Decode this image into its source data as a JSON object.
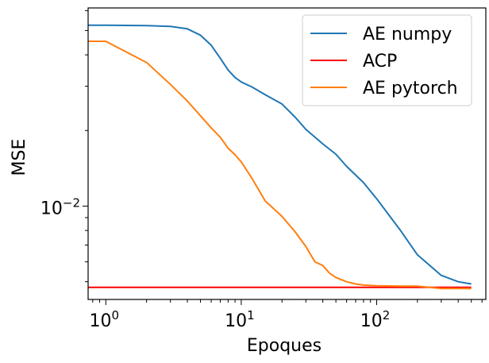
{
  "chart_data": {
    "type": "line",
    "title": "",
    "xlabel": "Epoques",
    "ylabel": "MSE",
    "x_scale": "log",
    "y_scale": "log",
    "xlim": [
      0.74,
      640
    ],
    "ylim": [
      0.00425,
      0.0615
    ],
    "x_ticks": [
      {
        "value": 1,
        "label": "10",
        "exp": "0"
      },
      {
        "value": 10,
        "label": "10",
        "exp": "1"
      },
      {
        "value": 100,
        "label": "10",
        "exp": "2"
      }
    ],
    "y_ticks": [
      {
        "value": 0.01,
        "label": "10",
        "exp": "−2"
      }
    ],
    "legend": {
      "position": "top-right"
    },
    "grid": false,
    "series": [
      {
        "name": "AE numpy",
        "color": "#1f77b4",
        "x": [
          0.74,
          1,
          2,
          3,
          4,
          5,
          6,
          7,
          8,
          9,
          10,
          12,
          15,
          20,
          25,
          30,
          40,
          50,
          60,
          80,
          100,
          150,
          200,
          300,
          400,
          500
        ],
        "y": [
          0.0525,
          0.0525,
          0.0523,
          0.0519,
          0.0508,
          0.0479,
          0.0437,
          0.0388,
          0.0348,
          0.0325,
          0.0312,
          0.0298,
          0.0278,
          0.0255,
          0.0226,
          0.0202,
          0.0177,
          0.0161,
          0.0144,
          0.0124,
          0.0107,
          0.008,
          0.0064,
          0.0053,
          0.005,
          0.0049
        ]
      },
      {
        "name": "ACP",
        "color": "#ff0000",
        "x": [
          0.74,
          500
        ],
        "y": [
          0.00475,
          0.00475
        ]
      },
      {
        "name": "AE pytorch",
        "color": "#ff7f0e",
        "x": [
          0.74,
          1,
          2,
          3,
          4,
          5,
          6,
          7,
          8,
          9,
          10,
          12,
          15,
          20,
          25,
          30,
          35,
          40,
          45,
          50,
          60,
          70,
          80,
          100,
          150,
          200,
          300,
          400,
          500
        ],
        "y": [
          0.0453,
          0.0453,
          0.0373,
          0.0305,
          0.0262,
          0.0229,
          0.0205,
          0.0188,
          0.017,
          0.016,
          0.015,
          0.0129,
          0.0105,
          0.0091,
          0.0079,
          0.0069,
          0.006,
          0.0058,
          0.0054,
          0.0052,
          0.005,
          0.0049,
          0.00485,
          0.00482,
          0.0048,
          0.0048,
          0.0047,
          0.0047,
          0.0047
        ]
      }
    ]
  }
}
